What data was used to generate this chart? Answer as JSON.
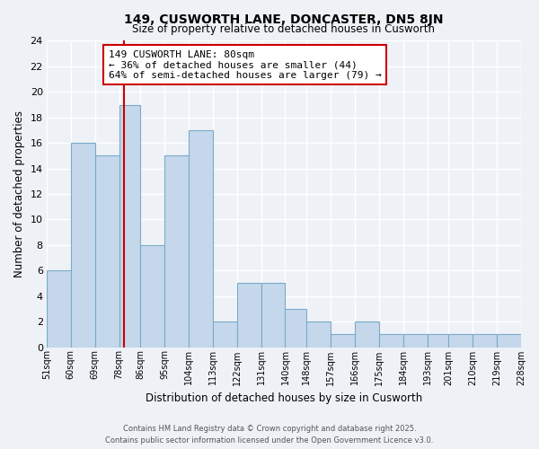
{
  "title": "149, CUSWORTH LANE, DONCASTER, DN5 8JN",
  "subtitle": "Size of property relative to detached houses in Cusworth",
  "xlabel": "Distribution of detached houses by size in Cusworth",
  "ylabel": "Number of detached properties",
  "bar_color": "#c5d8eb",
  "bar_edge_color": "#7aaac8",
  "background_color": "#eef2f7",
  "grid_color": "#ffffff",
  "bin_edges": [
    51,
    60,
    69,
    78,
    86,
    95,
    104,
    113,
    122,
    131,
    140,
    148,
    157,
    166,
    175,
    184,
    193,
    201,
    210,
    219,
    228
  ],
  "bin_labels": [
    "51sqm",
    "60sqm",
    "69sqm",
    "78sqm",
    "86sqm",
    "95sqm",
    "104sqm",
    "113sqm",
    "122sqm",
    "131sqm",
    "140sqm",
    "148sqm",
    "157sqm",
    "166sqm",
    "175sqm",
    "184sqm",
    "193sqm",
    "201sqm",
    "210sqm",
    "219sqm",
    "228sqm"
  ],
  "counts": [
    6,
    16,
    15,
    19,
    8,
    15,
    17,
    2,
    5,
    5,
    3,
    2,
    1,
    2,
    1,
    1,
    1,
    1,
    1,
    1
  ],
  "ylim": [
    0,
    24
  ],
  "yticks": [
    0,
    2,
    4,
    6,
    8,
    10,
    12,
    14,
    16,
    18,
    20,
    22,
    24
  ],
  "red_line_x": 80,
  "annotation_text": "149 CUSWORTH LANE: 80sqm\n← 36% of detached houses are smaller (44)\n64% of semi-detached houses are larger (79) →",
  "annotation_box_color": "#ffffff",
  "annotation_box_edge": "#cc0000",
  "footer1": "Contains HM Land Registry data © Crown copyright and database right 2025.",
  "footer2": "Contains public sector information licensed under the Open Government Licence v3.0."
}
